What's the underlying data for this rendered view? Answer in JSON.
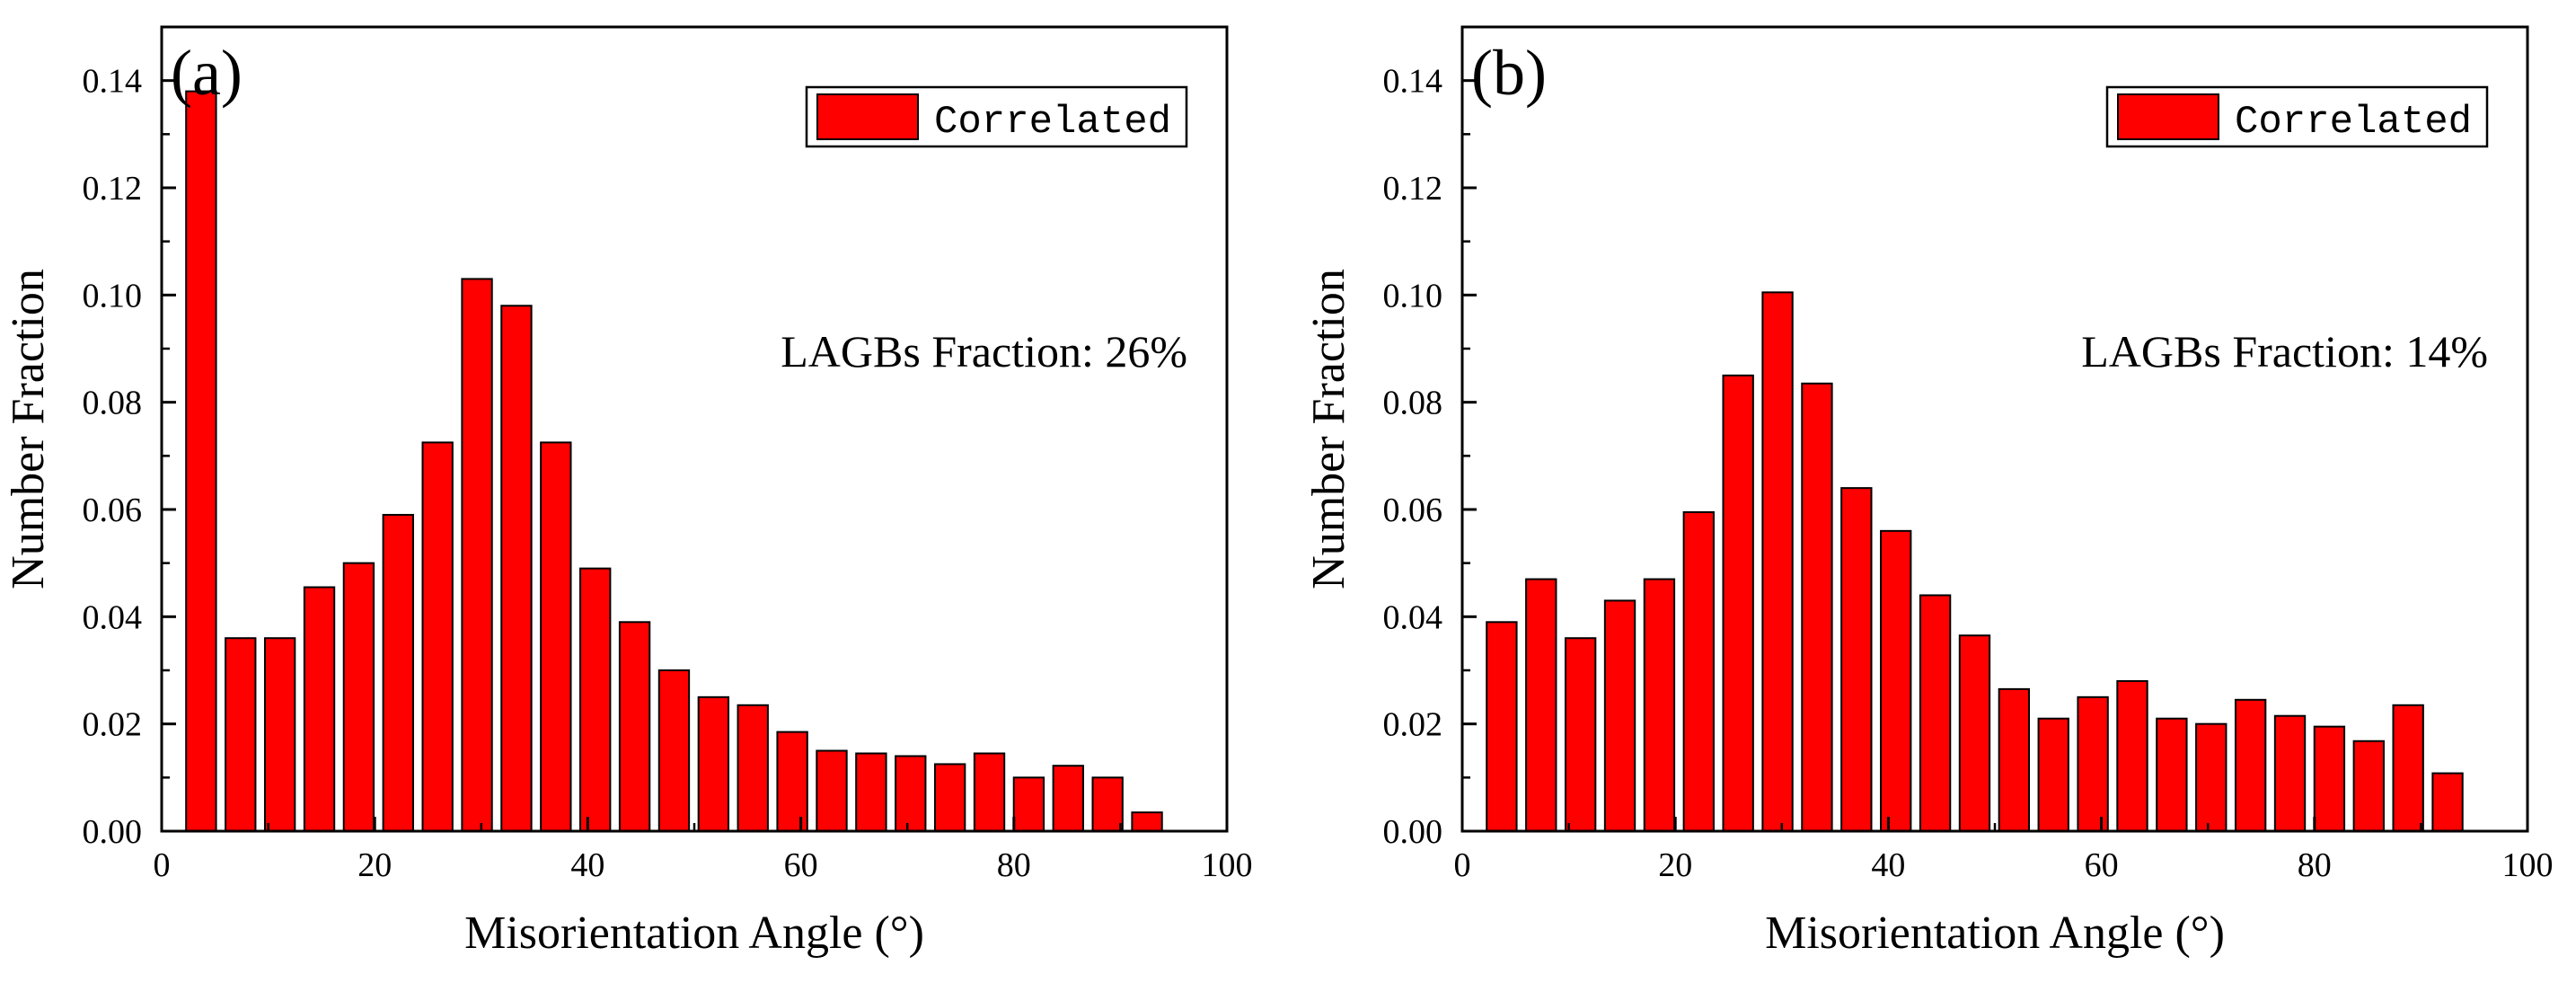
{
  "colors": {
    "bar_fill": "#ff0000",
    "bar_stroke": "#000000",
    "axis": "#000000",
    "background": "#ffffff"
  },
  "chart_data": [
    {
      "type": "bar",
      "panel_label": "(a)",
      "xlabel": "Misorientation Angle (°)",
      "ylabel": "Number Fraction",
      "xlim": [
        0,
        100
      ],
      "ylim": [
        0,
        0.15
      ],
      "xticks": [
        "0",
        "20",
        "40",
        "60",
        "80",
        "100"
      ],
      "yticks": [
        "0.00",
        "0.02",
        "0.04",
        "0.06",
        "0.08",
        "0.10",
        "0.12",
        "0.14"
      ],
      "legend": "Correlated",
      "annotation": "LAGBs Fraction: 26%",
      "bin_width": 3.7,
      "x": [
        3.7,
        7.4,
        11.1,
        14.8,
        18.5,
        22.2,
        25.9,
        29.6,
        33.3,
        37.0,
        40.7,
        44.4,
        48.1,
        51.8,
        55.5,
        59.2,
        62.9,
        66.6,
        70.3,
        74.0,
        77.7,
        81.4,
        85.1,
        88.8,
        92.5
      ],
      "values": [
        0.138,
        0.036,
        0.036,
        0.0455,
        0.05,
        0.059,
        0.0725,
        0.103,
        0.098,
        0.0725,
        0.049,
        0.039,
        0.03,
        0.025,
        0.0235,
        0.0185,
        0.015,
        0.0145,
        0.014,
        0.0125,
        0.0145,
        0.01,
        0.0122,
        0.01,
        0.0035
      ]
    },
    {
      "type": "bar",
      "panel_label": "(b)",
      "xlabel": "Misorientation Angle (°)",
      "ylabel": "Number Fraction",
      "xlim": [
        0,
        100
      ],
      "ylim": [
        0,
        0.15
      ],
      "xticks": [
        "0",
        "20",
        "40",
        "60",
        "80",
        "100"
      ],
      "yticks": [
        "0.00",
        "0.02",
        "0.04",
        "0.06",
        "0.08",
        "0.10",
        "0.12",
        "0.14"
      ],
      "legend": "Correlated",
      "annotation": "LAGBs Fraction: 14%",
      "bin_width": 3.7,
      "x": [
        3.7,
        7.4,
        11.1,
        14.8,
        18.5,
        22.2,
        25.9,
        29.6,
        33.3,
        37.0,
        40.7,
        44.4,
        48.1,
        51.8,
        55.5,
        59.2,
        62.9,
        66.6,
        70.3,
        74.0,
        77.7,
        81.4,
        85.1,
        88.8,
        92.5
      ],
      "values": [
        0.039,
        0.047,
        0.036,
        0.043,
        0.047,
        0.0595,
        0.085,
        0.1005,
        0.0835,
        0.064,
        0.056,
        0.044,
        0.0365,
        0.0265,
        0.021,
        0.025,
        0.028,
        0.021,
        0.02,
        0.0245,
        0.0215,
        0.0195,
        0.0168,
        0.0235,
        0.0108
      ]
    }
  ]
}
